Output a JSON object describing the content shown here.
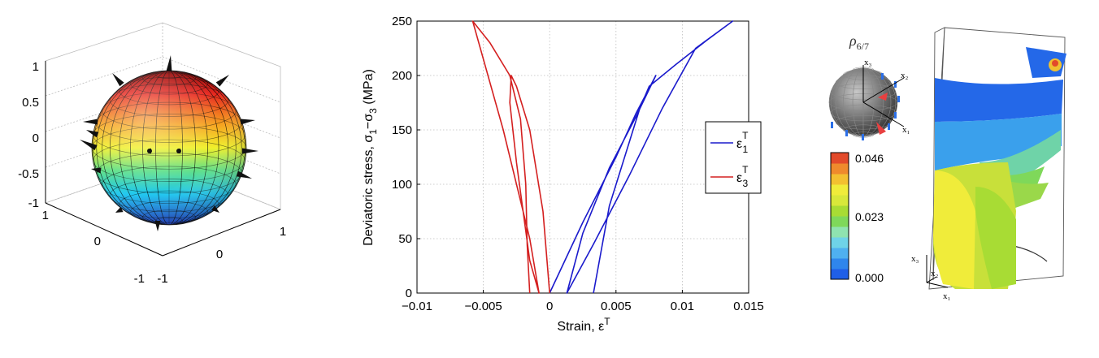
{
  "chart_data": [
    {
      "type": "surface-3d",
      "xlim": [
        -1,
        1
      ],
      "ylim": [
        -1,
        1
      ],
      "zlim": [
        -1,
        1
      ],
      "x_ticks": [
        "-1",
        "0",
        "1"
      ],
      "y_ticks": [
        "1",
        "0",
        "-1"
      ],
      "z_ticks": [
        "1",
        "0.5",
        "0",
        "-0.5",
        "-1"
      ],
      "grid": true,
      "colormap": "jet"
    },
    {
      "type": "line",
      "xlabel": "Strain, ε",
      "xlabel_sup": "T",
      "ylabel": "Deviatoric stress, σ",
      "ylabel_sub1": "1",
      "ylabel_mid": "−σ",
      "ylabel_sub2": "3",
      "ylabel_unit": " (MPa)",
      "xlim": [
        -0.01,
        0.015
      ],
      "ylim": [
        0,
        250
      ],
      "x_ticks": [
        -0.01,
        -0.005,
        0,
        0.005,
        0.01,
        0.015
      ],
      "x_tick_labels": [
        "−0.01",
        "−0.005",
        "0",
        "0.005",
        "0.01",
        "0.015"
      ],
      "y_ticks": [
        0,
        50,
        100,
        150,
        200,
        250
      ],
      "y_tick_labels": [
        "0",
        "50",
        "100",
        "150",
        "200",
        "250"
      ],
      "grid": true,
      "legend_position": "right",
      "series": [
        {
          "legend_main": "ε",
          "legend_sup": "T",
          "legend_sub": "1",
          "color": "#1a1acc",
          "x": [
            0,
            0.0025,
            0.005,
            0.0065,
            0.008,
            0.0065,
            0.0045,
            0.0025,
            0.0013,
            0.0033,
            0.006,
            0.0085,
            0.011,
            0.0138,
            0.0118,
            0.0095,
            0.0075,
            0.0068,
            0.0045,
            0.0033
          ],
          "y": [
            0,
            65,
            125,
            165,
            200,
            162,
            115,
            55,
            0,
            45,
            108,
            170,
            225,
            250,
            232,
            210,
            190,
            170,
            80,
            0
          ]
        },
        {
          "legend_main": "ε",
          "legend_sup": "T",
          "legend_sub": "3",
          "color": "#d42020",
          "x": [
            0,
            -0.0005,
            -0.0015,
            -0.0025,
            -0.0029,
            -0.003,
            -0.0025,
            -0.0015,
            -0.0008,
            -0.0015,
            -0.0035,
            -0.0058,
            -0.0045,
            -0.003,
            -0.0022,
            -0.0018,
            -0.0017,
            -0.0015
          ],
          "y": [
            0,
            75,
            150,
            190,
            200,
            175,
            120,
            30,
            0,
            50,
            150,
            250,
            230,
            200,
            160,
            100,
            45,
            0
          ]
        }
      ]
    },
    {
      "type": "heatmap",
      "title": "ρ",
      "title_sub": "6/7",
      "sphere_axes": [
        "x₃",
        "x₂",
        "x₁"
      ],
      "colorbar_ticks": [
        "0.046",
        "0.023",
        "0.000"
      ],
      "colorbar_range": [
        0,
        0.046
      ],
      "colors": [
        "#1f5fe8",
        "#2f86ec",
        "#4fb0f0",
        "#6fd3e8",
        "#8fe3b0",
        "#7fd85a",
        "#a8dc34",
        "#d8e83a",
        "#f0ec3a",
        "#f3c030",
        "#ef8a2c",
        "#e24a2a"
      ],
      "volume_axes": [
        "x₃",
        "x₂",
        "x₁"
      ]
    }
  ]
}
